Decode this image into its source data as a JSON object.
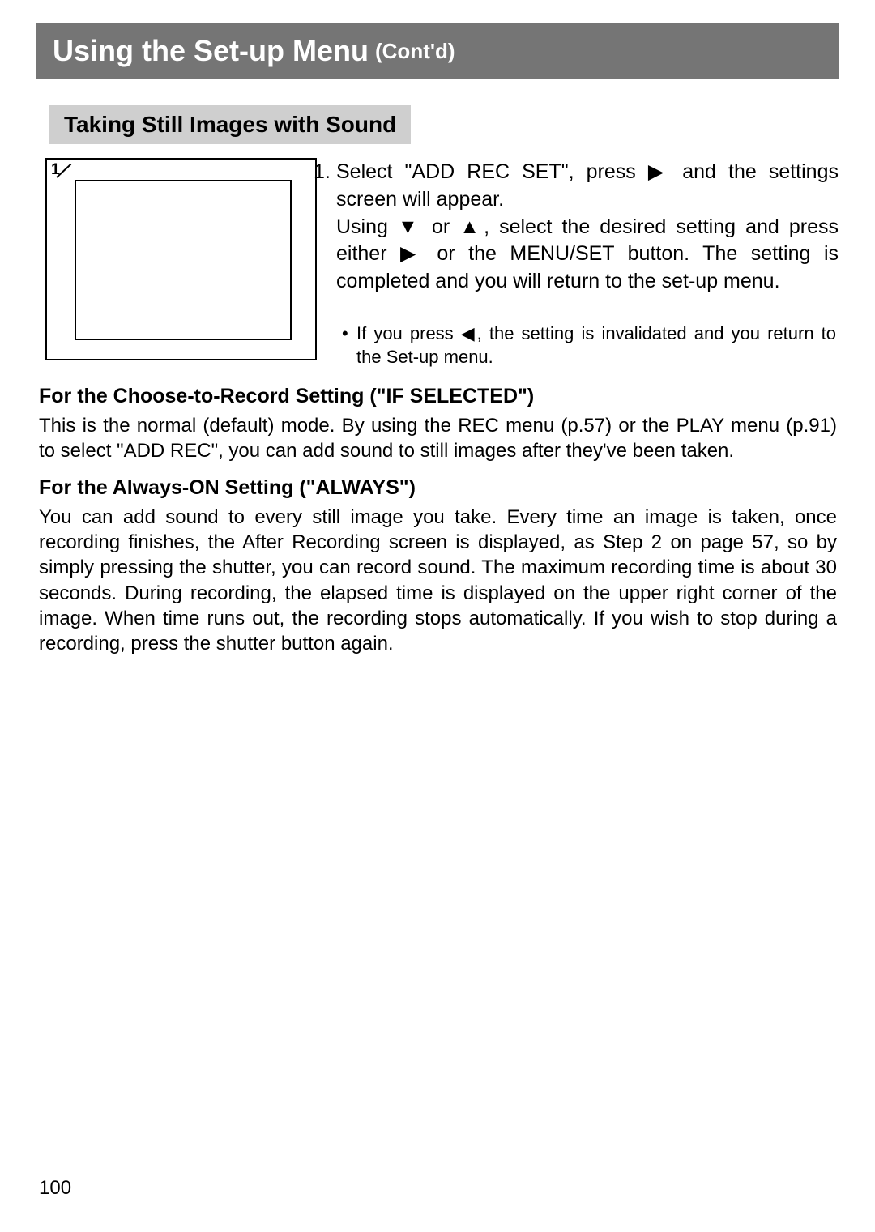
{
  "header": {
    "title": "Using the Set-up Menu",
    "subtitle": "(Cont'd)"
  },
  "section": {
    "title": "Taking Still Images with Sound"
  },
  "diagram": {
    "label": "1"
  },
  "step1": {
    "number": "1.",
    "line1": "Select \"ADD REC SET\", press ▶ and the settings screen will appear.",
    "line2": "Using ▼ or ▲, select the desired setting and press either ▶ or the MENU/SET button. The setting is completed and you will return to the set-up menu.",
    "bullet": "If you press ◀, the setting is invalidated and you return to the Set-up menu."
  },
  "sub1": {
    "heading": "For the Choose-to-Record Setting (\"IF SELECTED\")",
    "body": "This is the normal (default) mode. By using the REC menu (p.57) or the PLAY menu (p.91) to select \"ADD REC\", you can add sound to still images after they've been taken."
  },
  "sub2": {
    "heading": "For the Always-ON Setting (\"ALWAYS\")",
    "body": "You can add sound to every still image you take. Every time an image is taken, once recording finishes, the After Recording screen is displayed, as Step 2 on page 57, so by simply pressing the shutter, you can record sound. The maximum recording time is about 30 seconds. During recording, the elapsed time is displayed on the upper right corner of the image. When time runs out, the recording stops automatically. If you wish to stop during a recording, press the shutter button again."
  },
  "page_number": "100"
}
